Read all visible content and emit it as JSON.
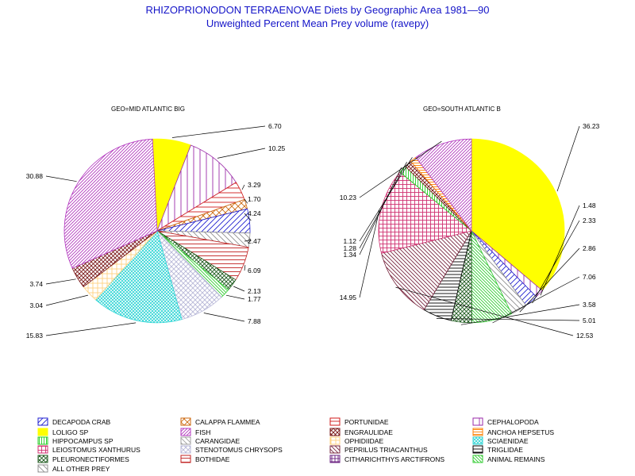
{
  "title": "RHIZOPRIONODON TERRAENOVAE Diets by Geographic Area 1981—90",
  "subtitle": "Unweighted Percent Mean Prey volume (ravepy)",
  "colors": {
    "DECAPODA CRAB": "#1f1fd0",
    "CALAPPA FLAMMEA": "#cc6a10",
    "PORTUNIDAE": "#d01818",
    "CEPHALOPODA": "#9a2aa8",
    "LOLIGO SP": "#ffff00",
    "FISH": "#b43cc0",
    "ENGRAULIDAE": "#7a1818",
    "ANCHOA HEPSETUS": "#ff7f00",
    "HIPPOCAMPUS SP": "#22cc22",
    "CARANGIDAE": "#a0a0a0",
    "OPHIDIIDAE": "#ffd27f",
    "SCIAENIDAE": "#33d6d6",
    "LEIOSTOMUS XANTHURUS": "#d03070",
    "STENOTOMUS CHRYSOPS": "#b8b8d8",
    "PEPRILUS TRIACANTHUS": "#7a2840",
    "TRIGLIDAE": "#000000",
    "PLEURONECTIFORMES": "#1e5a1e",
    "BOTHIDAE": "#c02020",
    "CITHARICHTHYS ARCTIFRONS": "#6a2080",
    "ANIMAL REMAINS": "#33cc33",
    "ALL OTHER PREY": "#909090"
  },
  "chart_data": [
    {
      "type": "pie",
      "title": "GEO=MID ATLANTIC BIG",
      "slices": [
        {
          "name": "LOLIGO SP",
          "value": 6.7
        },
        {
          "name": "CEPHALOPODA",
          "value": 10.25
        },
        {
          "name": "PORTUNIDAE",
          "value": 3.29
        },
        {
          "name": "CALAPPA FLAMMEA",
          "value": 1.7
        },
        {
          "name": "DECAPODA CRAB",
          "value": 4.24
        },
        {
          "name": "ALL OTHER PREY",
          "value": 2.47
        },
        {
          "name": "BOTHIDAE",
          "value": 6.09
        },
        {
          "name": "PLEURONECTIFORMES",
          "value": 2.13
        },
        {
          "name": "ANIMAL REMAINS",
          "value": 1.77
        },
        {
          "name": "STENOTOMUS CHRYSOPS",
          "value": 7.88
        },
        {
          "name": "SCIAENIDAE",
          "value": 15.83
        },
        {
          "name": "OPHIDIIDAE",
          "value": 3.04
        },
        {
          "name": "ENGRAULIDAE",
          "value": 3.74
        },
        {
          "name": "FISH",
          "value": 30.88
        }
      ],
      "labels": [
        "6.70",
        "10.25",
        "3.29",
        "1.70",
        "4.24",
        "2.47",
        "6.09",
        "2.13",
        "1.77",
        "7.88",
        "15.83",
        "3.04",
        "3.74",
        "30.88"
      ]
    },
    {
      "type": "pie",
      "title": "GEO=SOUTH ATLANTIC B",
      "slices": [
        {
          "name": "LOLIGO SP",
          "value": 36.23
        },
        {
          "name": "CEPHALOPODA",
          "value": 1.48
        },
        {
          "name": "DECAPODA CRAB",
          "value": 2.33
        },
        {
          "name": "ALL OTHER PREY",
          "value": 2.86
        },
        {
          "name": "ANIMAL REMAINS",
          "value": 7.06
        },
        {
          "name": "PLEURONECTIFORMES",
          "value": 3.58
        },
        {
          "name": "TRIGLIDAE",
          "value": 5.01
        },
        {
          "name": "PEPRILUS TRIACANTHUS",
          "value": 12.53
        },
        {
          "name": "LEIOSTOMUS XANTHURUS",
          "value": 14.95
        },
        {
          "name": "HIPPOCAMPUS SP",
          "value": 1.34
        },
        {
          "name": "ENGRAULIDAE",
          "value": 1.28
        },
        {
          "name": "ANCHOA HEPSETUS",
          "value": 1.12
        },
        {
          "name": "FISH",
          "value": 10.23
        }
      ],
      "labels": [
        "36.23",
        "1.48",
        "2.33",
        "2.86",
        "7.06",
        "3.58",
        "5.01",
        "12.53",
        "14.95",
        "1.34",
        "1.28",
        "1.12",
        "10.23"
      ]
    }
  ],
  "legend": {
    "placement": "bottom",
    "entries": [
      "DECAPODA CRAB",
      "CALAPPA FLAMMEA",
      "PORTUNIDAE",
      "CEPHALOPODA",
      "LOLIGO SP",
      "FISH",
      "ENGRAULIDAE",
      "ANCHOA HEPSETUS",
      "HIPPOCAMPUS SP",
      "CARANGIDAE",
      "OPHIDIIDAE",
      "SCIAENIDAE",
      "LEIOSTOMUS XANTHURUS",
      "STENOTOMUS CHRYSOPS",
      "PEPRILUS TRIACANTHUS",
      "TRIGLIDAE",
      "PLEURONECTIFORMES",
      "BOTHIDAE",
      "CITHARICHTHYS ARCTIFRONS",
      "ANIMAL REMAINS",
      "ALL OTHER PREY"
    ]
  }
}
